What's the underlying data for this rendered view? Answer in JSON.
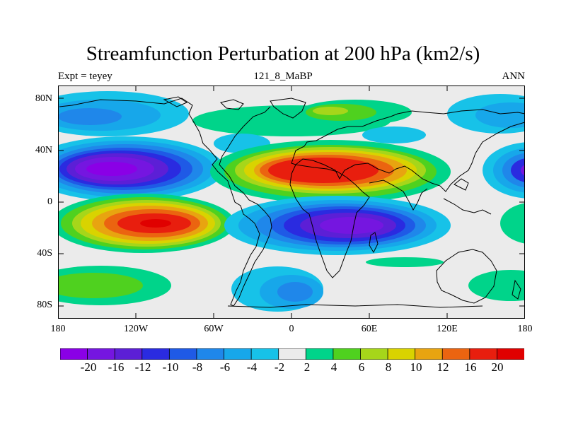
{
  "title": "Streamfunction Perturbation at 200 hPa (km2/s)",
  "subtitle_left": "Expt = teyey",
  "subtitle_center": "121_8_MaBP",
  "subtitle_right": "ANN",
  "lat_labels": [
    "80N",
    "40N",
    "0",
    "40S",
    "80S"
  ],
  "lon_labels": [
    "180",
    "120W",
    "60W",
    "0",
    "60E",
    "120E",
    "180"
  ],
  "colorbar": {
    "labels": [
      "-20",
      "-16",
      "-12",
      "-10",
      "-8",
      "-6",
      "-4",
      "-2",
      "2",
      "4",
      "6",
      "8",
      "10",
      "12",
      "16",
      "20"
    ],
    "colors": [
      "#8a00e6",
      "#7516e0",
      "#5c1fd6",
      "#2a2be0",
      "#1f5ae6",
      "#1f87ea",
      "#17a7ea",
      "#17c2e8",
      "#ebebeb",
      "#00d48a",
      "#4fd11f",
      "#a6d61a",
      "#d9d300",
      "#e8a410",
      "#eb6410",
      "#e81e0e",
      "#e00000"
    ]
  },
  "colors": {
    "background": "#ebebeb"
  }
}
